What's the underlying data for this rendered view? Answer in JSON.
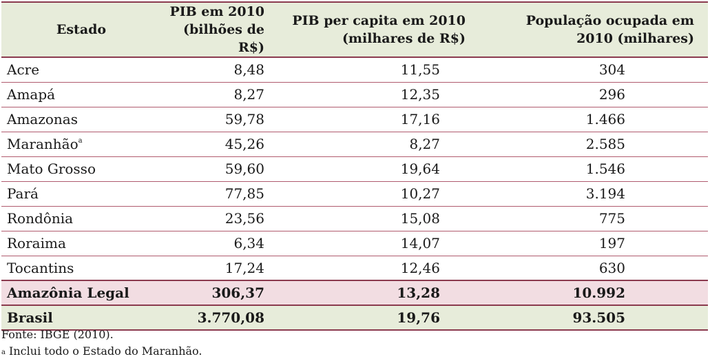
{
  "table": {
    "headers": {
      "estado": "Estado",
      "pib_line1": "PIB em 2010",
      "pib_line2": "(bilhões de R$)",
      "percapita_line1": "PIB per capita em 2010",
      "percapita_line2": "(milhares de R$)",
      "pop_line1": "População ocupada em",
      "pop_line2": "2010 (milhares)"
    },
    "rows": [
      {
        "estado": "Acre",
        "note": "",
        "pib": "8,48",
        "percapita": "11,55",
        "pop": "304"
      },
      {
        "estado": "Amapá",
        "note": "",
        "pib": "8,27",
        "percapita": "12,35",
        "pop": "296"
      },
      {
        "estado": "Amazonas",
        "note": "",
        "pib": "59,78",
        "percapita": "17,16",
        "pop": "1.466"
      },
      {
        "estado": "Maranhão",
        "note": "a",
        "pib": "45,26",
        "percapita": "8,27",
        "pop": "2.585"
      },
      {
        "estado": "Mato Grosso",
        "note": "",
        "pib": "59,60",
        "percapita": "19,64",
        "pop": "1.546"
      },
      {
        "estado": "Pará",
        "note": "",
        "pib": "77,85",
        "percapita": "10,27",
        "pop": "3.194"
      },
      {
        "estado": "Rondônia",
        "note": "",
        "pib": "23,56",
        "percapita": "15,08",
        "pop": "775"
      },
      {
        "estado": "Roraima",
        "note": "",
        "pib": "6,34",
        "percapita": "14,07",
        "pop": "197"
      },
      {
        "estado": "Tocantins",
        "note": "",
        "pib": "17,24",
        "percapita": "12,46",
        "pop": "630"
      }
    ],
    "totals": {
      "legal": {
        "estado": "Amazônia Legal",
        "pib": "306,37",
        "percapita": "13,28",
        "pop": "10.992"
      },
      "brasil": {
        "estado": "Brasil",
        "pib": "3.770,08",
        "percapita": "19,76",
        "pop": "93.505"
      }
    }
  },
  "footnotes": {
    "source": "Fonte: IBGE (2010).",
    "note_mark": "a",
    "note_text": " Inclui todo o Estado do Maranhão."
  },
  "colors": {
    "header_bg": "#e7ecda",
    "rule": "#8b3a4e",
    "legal_bg": "#f2dde2"
  }
}
